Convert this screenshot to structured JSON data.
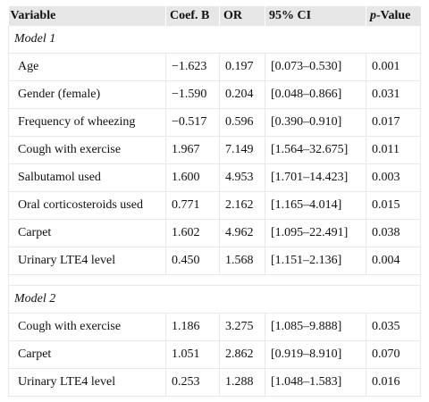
{
  "table": {
    "headers": {
      "variable": "Variable",
      "coef": "Coef. B",
      "or": "OR",
      "ci": "95% CI",
      "p_prefix": "p",
      "p_suffix": "-Value"
    },
    "model1": {
      "title": "Model 1",
      "rows": [
        {
          "variable": "Age",
          "coef": "−1.623",
          "or": "0.197",
          "ci": "[0.073–0.530]",
          "p": "0.001"
        },
        {
          "variable": "Gender (female)",
          "coef": "−1.590",
          "or": "0.204",
          "ci": "[0.048–0.866]",
          "p": "0.031"
        },
        {
          "variable": "Frequency of wheezing",
          "coef": "−0.517",
          "or": "0.596",
          "ci": "[0.390–0.910]",
          "p": "0.017"
        },
        {
          "variable": "Cough with exercise",
          "coef": "1.967",
          "or": "7.149",
          "ci": "[1.564–32.675]",
          "p": "0.011"
        },
        {
          "variable": "Salbutamol used",
          "coef": "1.600",
          "or": "4.953",
          "ci": "[1.701–14.423]",
          "p": "0.003"
        },
        {
          "variable": "Oral corticosteroids used",
          "coef": "0.771",
          "or": "2.162",
          "ci": "[1.165–4.014]",
          "p": "0.015"
        },
        {
          "variable": "Carpet",
          "coef": "1.602",
          "or": "4.962",
          "ci": "[1.095–22.491]",
          "p": "0.038"
        },
        {
          "variable": "Urinary LTE4 level",
          "coef": "0.450",
          "or": "1.568",
          "ci": "[1.151–2.136]",
          "p": "0.004"
        }
      ]
    },
    "model2": {
      "title": "Model 2",
      "rows": [
        {
          "variable": "Cough with exercise",
          "coef": "1.186",
          "or": "3.275",
          "ci": "[1.085–9.888]",
          "p": "0.035"
        },
        {
          "variable": "Carpet",
          "coef": "1.051",
          "or": "2.862",
          "ci": "[0.919–8.910]",
          "p": "0.070"
        },
        {
          "variable": "Urinary LTE4 level",
          "coef": "0.253",
          "or": "1.288",
          "ci": "[1.048–1.583]",
          "p": "0.016"
        }
      ]
    }
  }
}
